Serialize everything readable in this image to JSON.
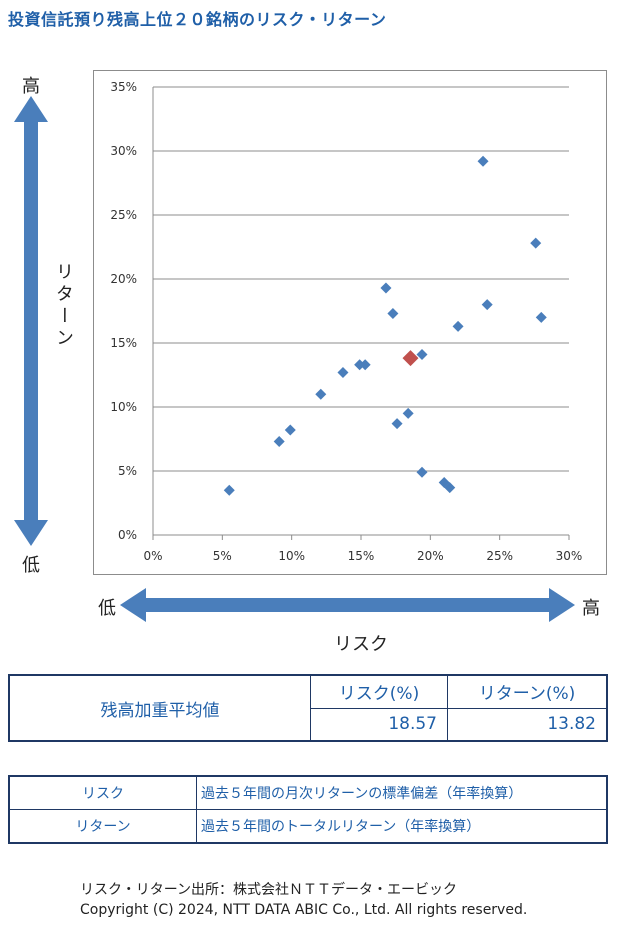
{
  "title": "投資信託預り残高上位２０銘柄のリスク・リターン",
  "labels": {
    "high_top": "高",
    "low_bottom": "低",
    "low_left": "低",
    "high_right": "高",
    "return_vertical": "リターン",
    "risk": "リスク"
  },
  "colors": {
    "series": "#4a7ebb",
    "average": "#c0504d",
    "arrow": "#4a7ebb",
    "title": "#1f5fa8",
    "table_border": "#1f3864"
  },
  "chart_data": {
    "type": "scatter",
    "xlim": [
      0,
      30
    ],
    "ylim": [
      0,
      35
    ],
    "xticks": [
      "0%",
      "5%",
      "10%",
      "15%",
      "20%",
      "25%",
      "30%"
    ],
    "yticks": [
      "0%",
      "5%",
      "10%",
      "15%",
      "20%",
      "25%",
      "30%",
      "35%"
    ],
    "grid": "horizontal",
    "marker": "diamond",
    "series": [
      {
        "points": [
          [
            5.5,
            3.5
          ],
          [
            9.1,
            7.3
          ],
          [
            9.9,
            8.2
          ],
          [
            12.1,
            11.0
          ],
          [
            13.7,
            12.7
          ],
          [
            14.9,
            13.3
          ],
          [
            15.3,
            13.3
          ],
          [
            16.8,
            19.3
          ],
          [
            17.3,
            17.3
          ],
          [
            17.6,
            8.7
          ],
          [
            18.4,
            9.5
          ],
          [
            19.4,
            14.1
          ],
          [
            19.4,
            4.9
          ],
          [
            21.0,
            4.1
          ],
          [
            21.4,
            3.7
          ],
          [
            22.0,
            16.3
          ],
          [
            23.8,
            29.2
          ],
          [
            24.1,
            18.0
          ],
          [
            27.6,
            22.8
          ],
          [
            28.0,
            17.0
          ]
        ]
      },
      {
        "role": "average",
        "points": [
          [
            18.57,
            13.82
          ]
        ]
      }
    ]
  },
  "summary": {
    "label": "残高加重平均値",
    "risk_header": "リスク(%)",
    "return_header": "リターン(%)",
    "risk_value": "18.57",
    "return_value": "13.82"
  },
  "definitions": [
    {
      "term": "リスク",
      "desc": "過去５年間の月次リターンの標準偏差（年率換算）"
    },
    {
      "term": "リターン",
      "desc": "過去５年間のトータルリターン（年率換算）"
    }
  ],
  "source_line1": "リスク・リターン出所：株式会社ＮＴＴデータ・エービック",
  "source_line2": "Copyright (C)  2024, NTT DATA ABIC Co., Ltd. All rights reserved."
}
